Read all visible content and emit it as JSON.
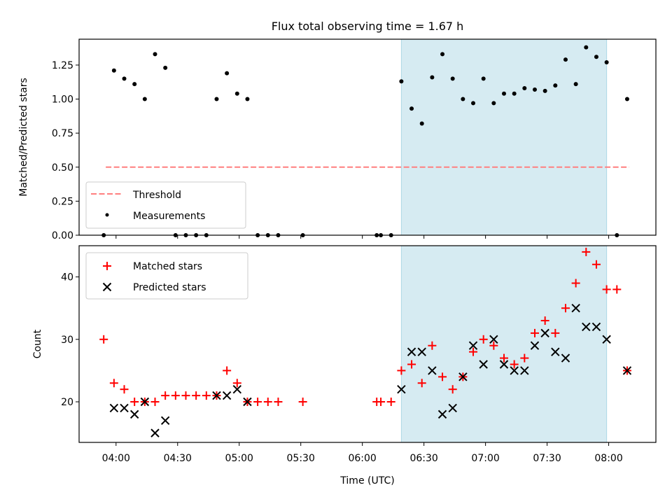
{
  "chart_data": {
    "title": "Flux total observing time = 1.67 h",
    "xlabel": "Time (UTC)",
    "x_ticks": [
      "04:00",
      "04:30",
      "05:00",
      "05:30",
      "06:00",
      "06:30",
      "07:00",
      "07:30",
      "08:00"
    ],
    "x_range": [
      "03:42",
      "08:23"
    ],
    "highlight_span": {
      "start": "06:19",
      "end": "07:59",
      "color": "#add8e6"
    },
    "panels": [
      {
        "type": "scatter",
        "ylabel": "Matched/Predicted stars",
        "ylim": [
          0,
          1.44
        ],
        "yticks": [
          "0.00",
          "0.25",
          "0.50",
          "0.75",
          "1.00",
          "1.25"
        ],
        "legend_position": "lower-left",
        "threshold": {
          "name": "Threshold",
          "value": 0.5,
          "x_start": "03:55",
          "x_end": "08:10",
          "color": "#ff7f7f"
        },
        "series": [
          {
            "name": "Measurements",
            "color": "#000000",
            "points": [
              [
                "03:54",
                0
              ],
              [
                "03:59",
                1.21
              ],
              [
                "04:04",
                1.15
              ],
              [
                "04:09",
                1.11
              ],
              [
                "04:14",
                1.0
              ],
              [
                "04:19",
                1.33
              ],
              [
                "04:24",
                1.23
              ],
              [
                "04:29",
                0
              ],
              [
                "04:34",
                0
              ],
              [
                "04:39",
                0
              ],
              [
                "04:44",
                0
              ],
              [
                "04:49",
                1.0
              ],
              [
                "04:54",
                1.19
              ],
              [
                "04:59",
                1.04
              ],
              [
                "05:04",
                1.0
              ],
              [
                "05:09",
                0
              ],
              [
                "05:14",
                0
              ],
              [
                "05:19",
                0
              ],
              [
                "05:31",
                0
              ],
              [
                "06:07",
                0
              ],
              [
                "06:09",
                0
              ],
              [
                "06:14",
                0
              ],
              [
                "06:19",
                1.13
              ],
              [
                "06:24",
                0.93
              ],
              [
                "06:29",
                0.82
              ],
              [
                "06:34",
                1.16
              ],
              [
                "06:39",
                1.33
              ],
              [
                "06:44",
                1.15
              ],
              [
                "06:49",
                1.0
              ],
              [
                "06:54",
                0.97
              ],
              [
                "06:59",
                1.15
              ],
              [
                "07:04",
                0.97
              ],
              [
                "07:09",
                1.04
              ],
              [
                "07:14",
                1.04
              ],
              [
                "07:19",
                1.08
              ],
              [
                "07:24",
                1.07
              ],
              [
                "07:29",
                1.06
              ],
              [
                "07:34",
                1.1
              ],
              [
                "07:39",
                1.29
              ],
              [
                "07:44",
                1.11
              ],
              [
                "07:49",
                1.38
              ],
              [
                "07:54",
                1.31
              ],
              [
                "07:59",
                1.27
              ],
              [
                "08:04",
                0
              ],
              [
                "08:09",
                1.0
              ]
            ]
          }
        ]
      },
      {
        "type": "scatter",
        "ylabel": "Count",
        "ylim": [
          13.5,
          45
        ],
        "yticks": [
          "20",
          "30",
          "40"
        ],
        "legend_position": "upper-left",
        "series": [
          {
            "name": "Matched stars",
            "marker": "+",
            "color": "#ff0000",
            "points": [
              [
                "03:54",
                30
              ],
              [
                "03:59",
                23
              ],
              [
                "04:04",
                22
              ],
              [
                "04:09",
                20
              ],
              [
                "04:14",
                20
              ],
              [
                "04:19",
                20
              ],
              [
                "04:24",
                21
              ],
              [
                "04:29",
                21
              ],
              [
                "04:34",
                21
              ],
              [
                "04:39",
                21
              ],
              [
                "04:44",
                21
              ],
              [
                "04:49",
                21
              ],
              [
                "04:54",
                25
              ],
              [
                "04:59",
                23
              ],
              [
                "05:04",
                20
              ],
              [
                "05:09",
                20
              ],
              [
                "05:14",
                20
              ],
              [
                "05:19",
                20
              ],
              [
                "05:31",
                20
              ],
              [
                "06:07",
                20
              ],
              [
                "06:09",
                20
              ],
              [
                "06:14",
                20
              ],
              [
                "06:19",
                25
              ],
              [
                "06:24",
                26
              ],
              [
                "06:29",
                23
              ],
              [
                "06:34",
                29
              ],
              [
                "06:39",
                24
              ],
              [
                "06:44",
                22
              ],
              [
                "06:49",
                24
              ],
              [
                "06:54",
                28
              ],
              [
                "06:59",
                30
              ],
              [
                "07:04",
                29
              ],
              [
                "07:09",
                27
              ],
              [
                "07:14",
                26
              ],
              [
                "07:19",
                27
              ],
              [
                "07:24",
                31
              ],
              [
                "07:29",
                33
              ],
              [
                "07:34",
                31
              ],
              [
                "07:39",
                35
              ],
              [
                "07:44",
                39
              ],
              [
                "07:49",
                44
              ],
              [
                "07:54",
                42
              ],
              [
                "07:59",
                38
              ],
              [
                "08:04",
                38
              ],
              [
                "08:09",
                25
              ]
            ]
          },
          {
            "name": "Predicted stars",
            "marker": "x",
            "color": "#000000",
            "points": [
              [
                "03:59",
                19
              ],
              [
                "04:04",
                19
              ],
              [
                "04:09",
                18
              ],
              [
                "04:14",
                20
              ],
              [
                "04:19",
                15
              ],
              [
                "04:24",
                17
              ],
              [
                "04:49",
                21
              ],
              [
                "04:54",
                21
              ],
              [
                "04:59",
                22
              ],
              [
                "05:04",
                20
              ],
              [
                "06:19",
                22
              ],
              [
                "06:24",
                28
              ],
              [
                "06:29",
                28
              ],
              [
                "06:34",
                25
              ],
              [
                "06:39",
                18
              ],
              [
                "06:44",
                19
              ],
              [
                "06:49",
                24
              ],
              [
                "06:54",
                29
              ],
              [
                "06:59",
                26
              ],
              [
                "07:04",
                30
              ],
              [
                "07:09",
                26
              ],
              [
                "07:14",
                25
              ],
              [
                "07:19",
                25
              ],
              [
                "07:24",
                29
              ],
              [
                "07:29",
                31
              ],
              [
                "07:34",
                28
              ],
              [
                "07:39",
                27
              ],
              [
                "07:44",
                35
              ],
              [
                "07:49",
                32
              ],
              [
                "07:54",
                32
              ],
              [
                "07:59",
                30
              ],
              [
                "08:09",
                25
              ]
            ]
          }
        ]
      }
    ]
  }
}
